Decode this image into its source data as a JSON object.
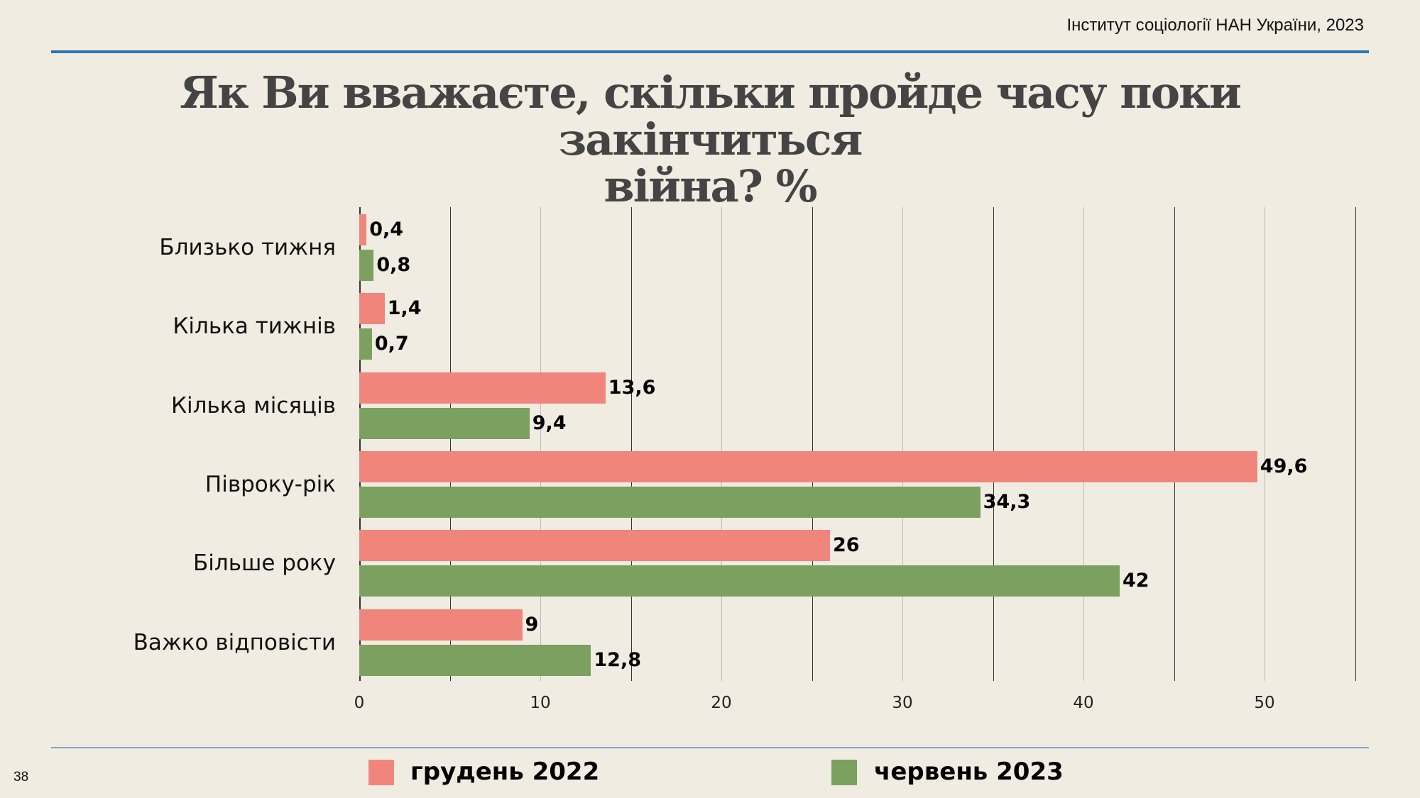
{
  "header": {
    "source": "Інститут соціології НАН України, 2023",
    "title_line1": "Як Ви вважаєте, скільки пройде часу поки закінчиться",
    "title_line2": "війна? %"
  },
  "footer": {
    "page_number": "38"
  },
  "colors": {
    "series1": "#F0857C",
    "series2": "#7BA05F",
    "rule": "#2E75AE",
    "background": "#F0ECE2"
  },
  "legend": [
    {
      "label": "грудень 2022",
      "color": "#F0857C"
    },
    {
      "label": "червень 2023",
      "color": "#7BA05F"
    }
  ],
  "chart_data": {
    "type": "bar",
    "orientation": "horizontal",
    "title": "Як Ви вважаєте, скільки пройде часу поки закінчиться війна? %",
    "categories": [
      "Близько тижня",
      "Кілька тижнів",
      "Кілька місяців",
      "Півроку-рік",
      "Більше року",
      "Важко відповісти"
    ],
    "series": [
      {
        "name": "грудень 2022",
        "color": "#F0857C",
        "values": [
          0.4,
          1.4,
          13.6,
          49.6,
          26,
          9
        ],
        "labels": [
          "0,4",
          "1,4",
          "13,6",
          "49,6",
          "26",
          "9"
        ]
      },
      {
        "name": "червень 2023",
        "color": "#7BA05F",
        "values": [
          0.8,
          0.7,
          9.4,
          34.3,
          42,
          12.8
        ],
        "labels": [
          "0,8",
          "0,7",
          "9,4",
          "34,3",
          "42",
          "12,8"
        ]
      }
    ],
    "xlabel": "",
    "ylabel": "",
    "xlim": [
      0,
      55
    ],
    "xticks": [
      "0",
      "10",
      "20",
      "30",
      "40",
      "50"
    ],
    "grid": true,
    "legend_position": "bottom"
  }
}
